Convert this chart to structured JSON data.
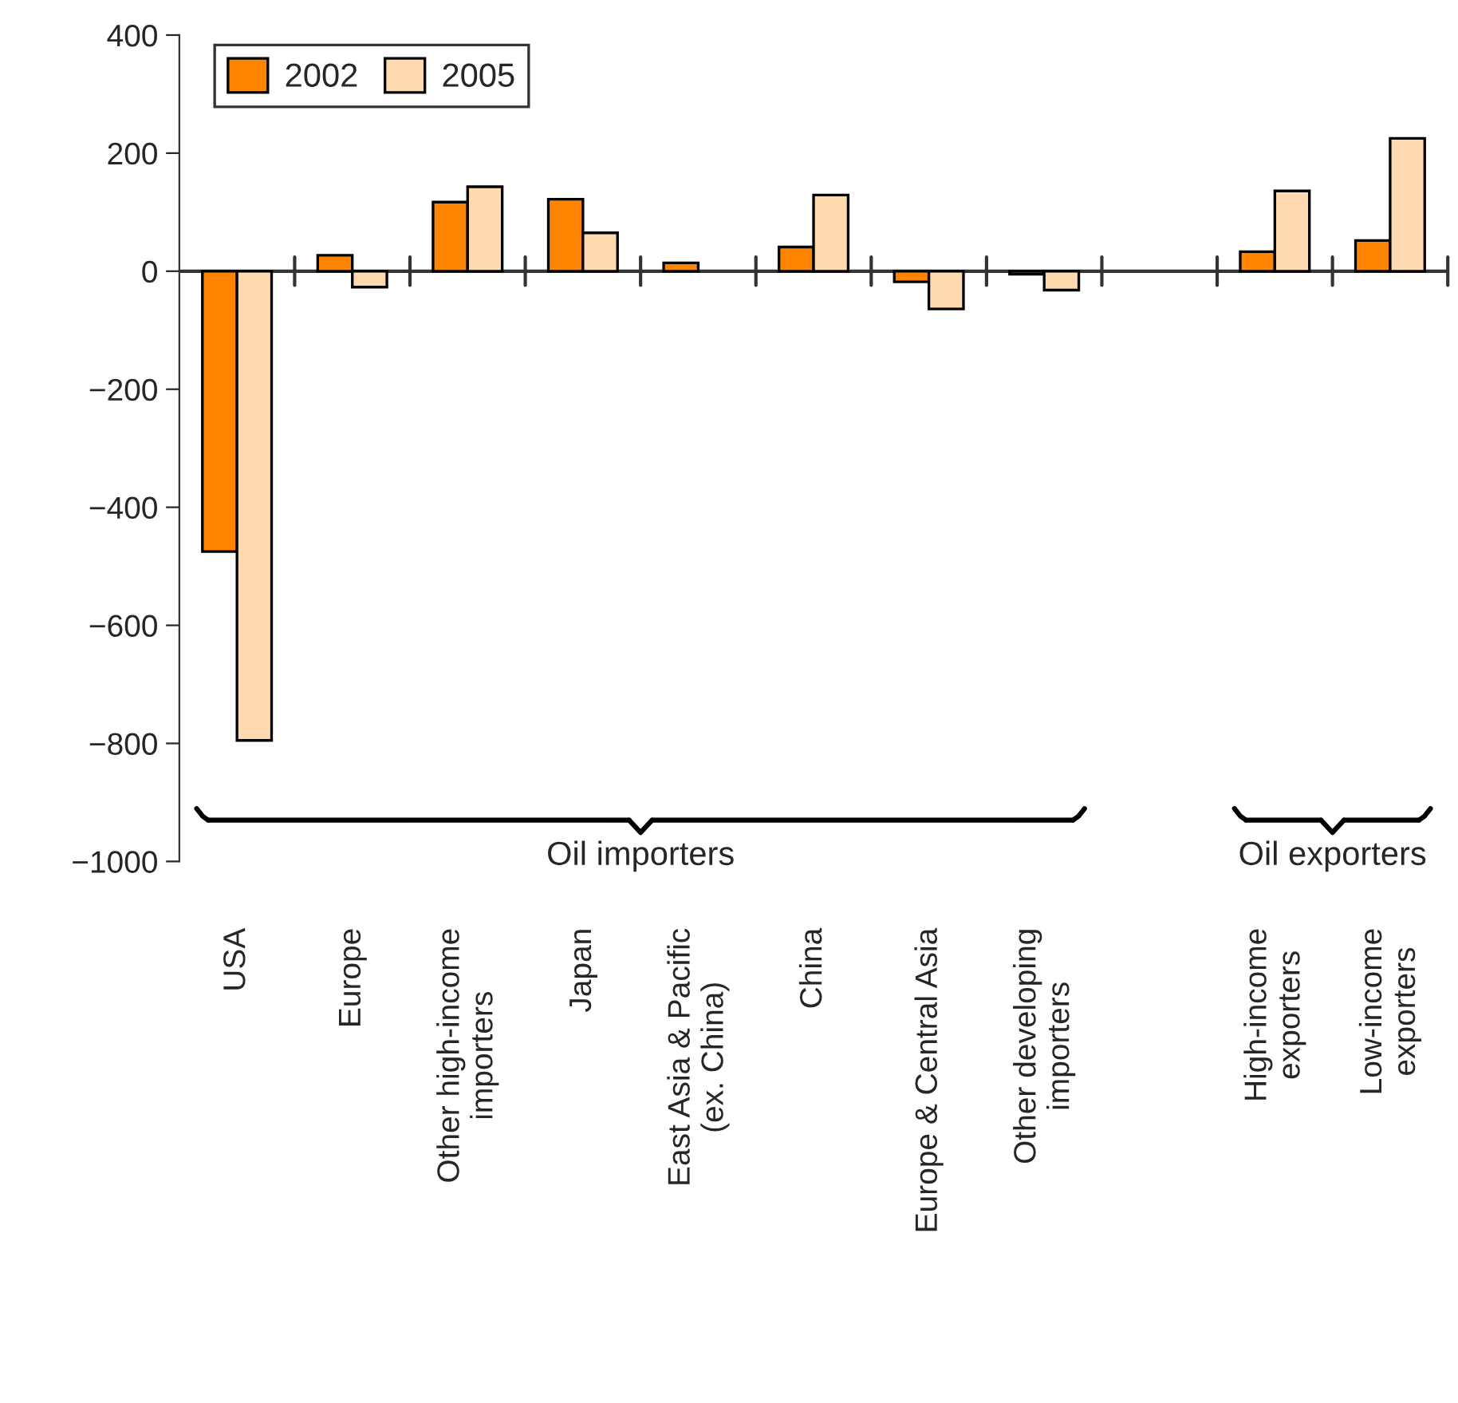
{
  "chart_data": {
    "type": "bar",
    "categories": [
      "USA",
      "Europe",
      "Other high-income\nimporters",
      "Japan",
      "East Asia & Pacific\n(ex. China)",
      "China",
      "Europe & Central Asia",
      "Other developing\nimporters",
      null,
      "High-income\nexporters",
      "Low-income\nexporters"
    ],
    "series": [
      {
        "name": "2002",
        "color": "#ff8400",
        "values": [
          -475,
          27,
          117,
          122,
          14,
          41,
          -18,
          -5,
          null,
          33,
          52
        ]
      },
      {
        "name": "2005",
        "color": "#ffdab0",
        "values": [
          -795,
          -27,
          143,
          65,
          null,
          129,
          -64,
          -32,
          null,
          136,
          225
        ]
      }
    ],
    "annotations": [
      "Oil importers",
      "Oil exporters"
    ],
    "ylim": [
      -1000,
      400
    ],
    "yticks": [
      -1000,
      -800,
      -600,
      -400,
      -200,
      0,
      200,
      400
    ],
    "ref_lines": [
      {
        "axis": "y",
        "value": 0,
        "color": "#333333"
      }
    ],
    "legend": "top left",
    "grid": false
  }
}
